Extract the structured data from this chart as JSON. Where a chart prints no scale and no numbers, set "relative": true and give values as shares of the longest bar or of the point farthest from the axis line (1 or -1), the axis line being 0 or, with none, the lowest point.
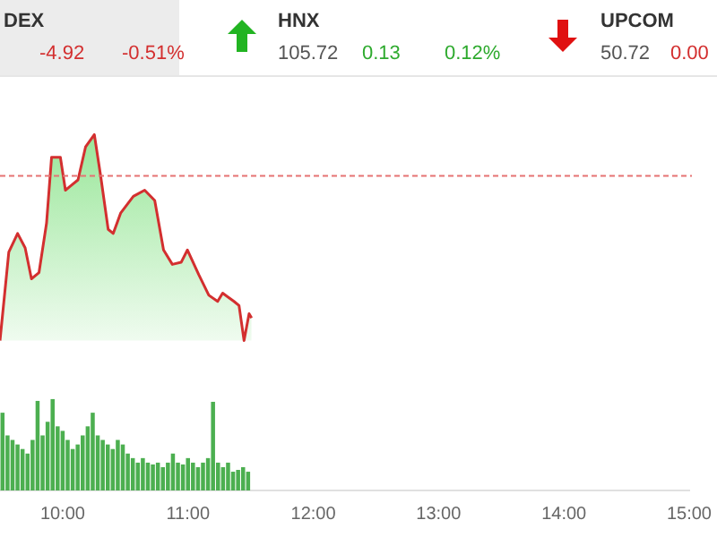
{
  "chart_data": [
    {
      "type": "other",
      "annotations": [
        "DEX",
        "-4.92",
        "-0.51%",
        "HNX",
        "105.72",
        "0.13",
        "0.12%",
        "UPCOM",
        "50.72",
        "0.00"
      ]
    },
    {
      "type": "area",
      "relative": true,
      "tick_labels": false,
      "xlim": [
        9.5,
        15
      ],
      "ref_lines": [
        {
          "axis": "y",
          "value": 0.8,
          "color": "#e57373",
          "line_style": "dashed"
        }
      ],
      "series": [
        {
          "color": "#d32f2f",
          "x": [
            9.5,
            9.57,
            9.64,
            9.7,
            9.75,
            9.81,
            9.87,
            9.91,
            9.98,
            10.02,
            10.06,
            10.12,
            10.18,
            10.25,
            10.3,
            10.36,
            10.4,
            10.46,
            10.56,
            10.65,
            10.73,
            10.8,
            10.87,
            10.94,
            10.99,
            11.08,
            11.16,
            11.23,
            11.27,
            11.36,
            11.4,
            11.44,
            11.48,
            11.5
          ],
          "values": [
            0,
            0.43,
            0.52,
            0.45,
            0.3,
            0.33,
            0.57,
            0.89,
            0.89,
            0.73,
            0.75,
            0.78,
            0.94,
            1,
            0.8,
            0.54,
            0.52,
            0.62,
            0.7,
            0.73,
            0.68,
            0.44,
            0.37,
            0.38,
            0.44,
            0.32,
            0.22,
            0.19,
            0.23,
            0.19,
            0.17,
            0,
            0.13,
            0.11
          ]
        }
      ]
    },
    {
      "type": "bar",
      "relative": true,
      "tick_labels": "x",
      "xlim": [
        9.5,
        15
      ],
      "xticks": [
        {
          "value": 10,
          "label": "10:00"
        },
        {
          "value": 11,
          "label": "11:00"
        },
        {
          "value": 12,
          "label": "12:00"
        },
        {
          "value": 13,
          "label": "13:00"
        },
        {
          "value": 14,
          "label": "14:00"
        },
        {
          "value": 15,
          "label": "15:00"
        }
      ],
      "series": [
        {
          "color": "#4caf50",
          "x": [
            9.52,
            9.56,
            9.6,
            9.64,
            9.68,
            9.72,
            9.76,
            9.8,
            9.84,
            9.88,
            9.92,
            9.96,
            10,
            10.04,
            10.08,
            10.12,
            10.16,
            10.2,
            10.24,
            10.28,
            10.32,
            10.36,
            10.4,
            10.44,
            10.48,
            10.52,
            10.56,
            10.6,
            10.64,
            10.68,
            10.72,
            10.76,
            10.8,
            10.84,
            10.88,
            10.92,
            10.96,
            11,
            11.04,
            11.08,
            11.12,
            11.16,
            11.2,
            11.24,
            11.28,
            11.32,
            11.36,
            11.4,
            11.44,
            11.48
          ],
          "values": [
            0.85,
            0.6,
            0.55,
            0.5,
            0.45,
            0.4,
            0.55,
            0.98,
            0.6,
            0.75,
            1,
            0.7,
            0.65,
            0.55,
            0.45,
            0.5,
            0.6,
            0.7,
            0.85,
            0.6,
            0.55,
            0.5,
            0.45,
            0.55,
            0.5,
            0.4,
            0.35,
            0.3,
            0.35,
            0.3,
            0.28,
            0.3,
            0.25,
            0.3,
            0.4,
            0.3,
            0.28,
            0.35,
            0.3,
            0.25,
            0.3,
            0.35,
            0.97,
            0.3,
            0.25,
            0.3,
            0.2,
            0.22,
            0.25,
            0.2
          ]
        }
      ]
    }
  ]
}
